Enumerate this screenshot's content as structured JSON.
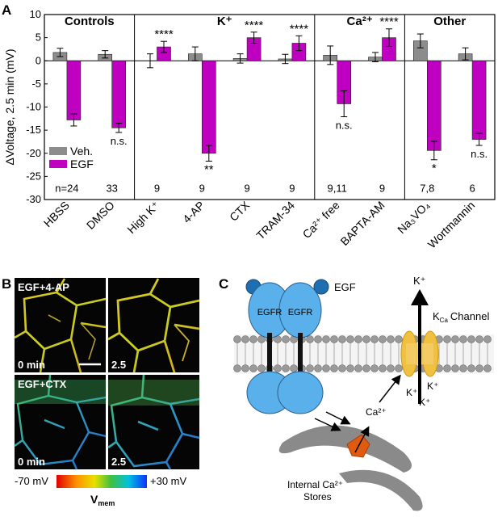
{
  "panels": {
    "a": "A",
    "b": "B",
    "c": "C"
  },
  "chart_data": {
    "type": "bar",
    "ylabel": "ΔVoltage, 2.5 min (mV)",
    "ylim": [
      -30,
      10
    ],
    "yticks": [
      10,
      5,
      0,
      -5,
      -10,
      -15,
      -20,
      -25,
      -30
    ],
    "grid": false,
    "legend_position": "left",
    "groups": [
      {
        "label": "Controls",
        "categories": [
          "HBSS",
          "DMSO"
        ]
      },
      {
        "label": "K⁺",
        "categories": [
          "High K⁺",
          "4-AP",
          "CTX",
          "TRAM-34"
        ]
      },
      {
        "label": "Ca²⁺",
        "categories": [
          "Ca²⁺ free",
          "BAPTA-AM"
        ]
      },
      {
        "label": "Other",
        "categories": [
          "Na₃VO₄",
          "Wortmannin"
        ]
      }
    ],
    "categories": [
      "HBSS",
      "DMSO",
      "High K⁺",
      "4-AP",
      "CTX",
      "TRAM-34",
      "Ca²⁺ free",
      "BAPTA-AM",
      "Na₃VO₄",
      "Wortmannin"
    ],
    "series": [
      {
        "name": "Veh.",
        "color": "#8c8c8c",
        "values": [
          1.8,
          1.4,
          0,
          1.5,
          0.5,
          0.4,
          1.2,
          0.8,
          4.3,
          1.5
        ],
        "errors": [
          0.9,
          0.8,
          1.5,
          1.5,
          1.0,
          1.0,
          2.0,
          1.0,
          1.5,
          1.3
        ]
      },
      {
        "name": "EGF",
        "color": "#c000c0",
        "values": [
          -12.8,
          -14.5,
          3.0,
          -20.0,
          5.0,
          3.8,
          -9.3,
          5.0,
          -19.4,
          -17.0
        ],
        "errors": [
          1.3,
          1.0,
          1.2,
          1.7,
          1.2,
          1.6,
          2.8,
          1.9,
          2.0,
          1.3
        ]
      }
    ],
    "significance": [
      "",
      "n.s.",
      "****",
      "**",
      "****",
      "****",
      "n.s.",
      "****",
      "*",
      "n.s."
    ],
    "n_labels": [
      "n=24",
      "33",
      "9",
      "9",
      "9",
      "9",
      "9,11",
      "9",
      "7,8",
      "6"
    ]
  },
  "micrographs": {
    "labels": [
      "EGF+4-AP",
      "EGF+CTX"
    ],
    "times": [
      "0 min",
      "2.5",
      "0 min",
      "2.5"
    ],
    "colorbar_min": "-70 mV",
    "colorbar_max": "+30 mV",
    "colorbar_label": "V",
    "colorbar_label_sub": "mem"
  },
  "diagram": {
    "egf": "EGF",
    "egfr": "EGFR",
    "channel_main": "K",
    "channel_sub": "Ca",
    "channel_suffix": "Channel",
    "k_ion": "K⁺",
    "ca_ion": "Ca²⁺",
    "stores_line1": "Internal Ca²⁺",
    "stores_line2": "Stores"
  }
}
